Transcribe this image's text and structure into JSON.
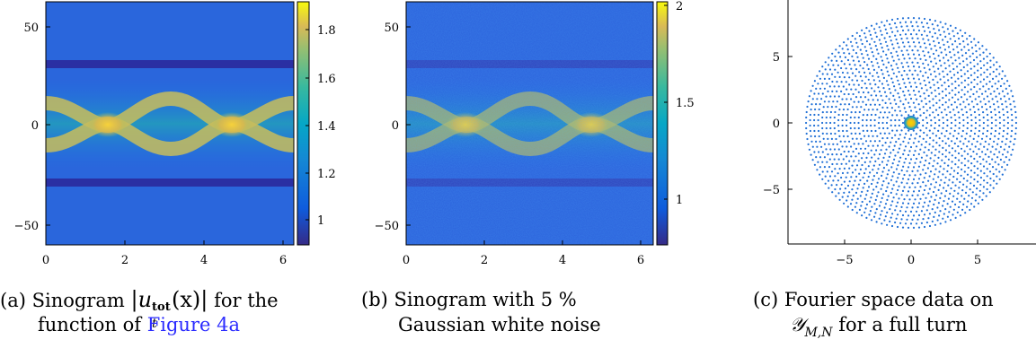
{
  "chart_data": [
    {
      "type": "heatmap",
      "x_ticks": [
        "0",
        "2",
        "4",
        "6"
      ],
      "y_ticks": [
        "50",
        "0",
        "−50"
      ],
      "colorbar_ticks": [
        "1.8",
        "1.6",
        "1.4",
        "1.2",
        "1"
      ],
      "xlim": [
        0,
        6.28
      ],
      "ylim": [
        -60,
        60
      ],
      "colorbar_range": [
        0.9,
        1.9
      ],
      "colormap": "parula",
      "noise": false
    },
    {
      "type": "heatmap",
      "x_ticks": [
        "0",
        "2",
        "4",
        "6"
      ],
      "y_ticks": [
        "50",
        "0",
        "−50"
      ],
      "colorbar_ticks": [
        "2",
        "1.5",
        "1"
      ],
      "xlim": [
        0,
        6.28
      ],
      "ylim": [
        -60,
        60
      ],
      "colorbar_range": [
        0.75,
        2.0
      ],
      "colormap": "parula",
      "noise": true
    },
    {
      "type": "scatter",
      "x_ticks": [
        "−5",
        "0",
        "5"
      ],
      "y_ticks": [
        "5",
        "0",
        "−5"
      ],
      "xlim": [
        -9,
        9
      ],
      "ylim": [
        -9,
        9
      ],
      "marker_color": "#1f6fd6",
      "center_color": "#f2c400",
      "pattern": "concentric rings of points covering a disc of radius ~8"
    }
  ],
  "captions": {
    "a": {
      "label": "(a)",
      "line1_pre": "Sinogram",
      "u": "u",
      "sup": "tot",
      "sub": "t",
      "arg": "(x)",
      "line1_post": "for the",
      "line2_pre": "function of",
      "line2_ref": "Figure 4a"
    },
    "b": {
      "label": "(b)",
      "line1": "Sinogram with 5 %",
      "line2": "Gaussian white noise"
    },
    "c": {
      "label": "(c)",
      "line1": "Fourier space data on",
      "y": "𝒴",
      "sub": "M,N",
      "line2_post": "for a full turn"
    }
  }
}
